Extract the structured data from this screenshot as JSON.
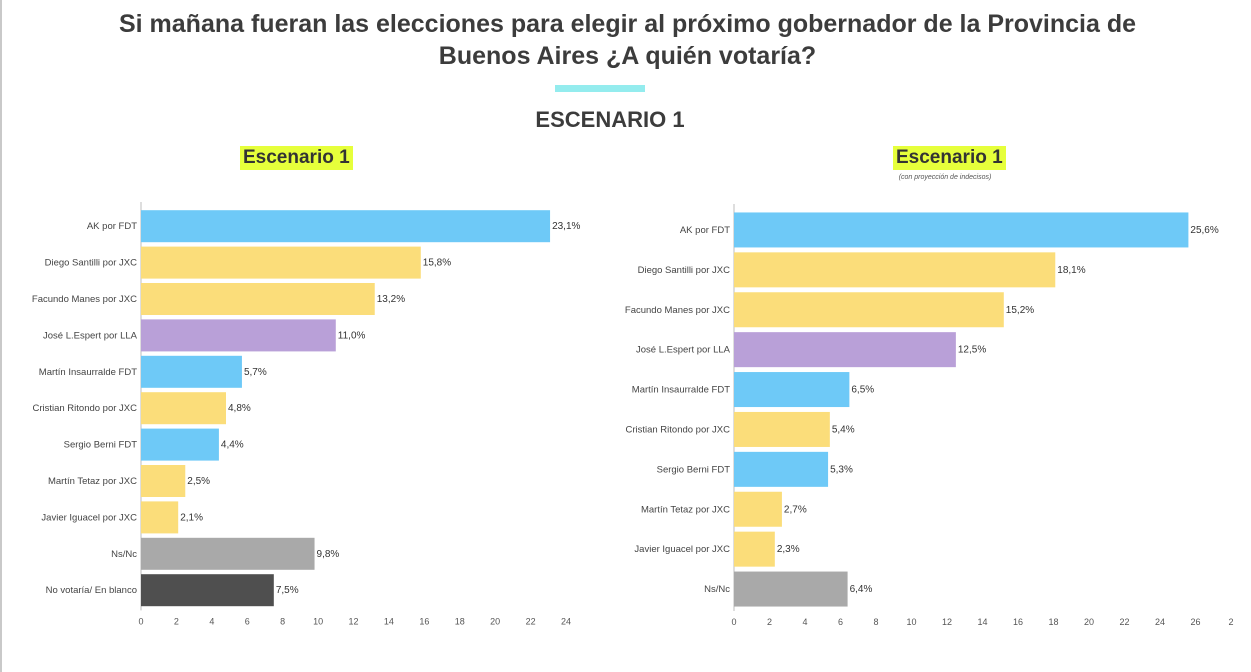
{
  "page": {
    "title": "Si mañana fueran las elecciones para elegir al próximo gobernador de la Provincia de Buenos Aires ¿A quién votaría?",
    "scenario_header": "ESCENARIO 1",
    "colors": {
      "accent": "#94ecee",
      "title_highlight": "#e6ff3b",
      "fdt": "#6ec9f7",
      "jxc": "#fbdd7a",
      "lla": "#b9a0d8",
      "nsnc": "#a9a9a9",
      "blank": "#4f4f4f"
    }
  },
  "chart_data": [
    {
      "type": "bar",
      "orientation": "horizontal",
      "title": "Escenario 1",
      "subtitle": "",
      "categories": [
        "AK por FDT",
        "Diego Santilli por JXC",
        "Facundo Manes por JXC",
        "José L.Espert por LLA",
        "Martín Insaurralde FDT",
        "Cristian Ritondo por JXC",
        "Sergio Berni FDT",
        "Martín Tetaz por JXC",
        "Javier Iguacel por JXC",
        "Ns/Nc",
        "No votaría/ En blanco"
      ],
      "values": [
        23.1,
        15.8,
        13.2,
        11.0,
        5.7,
        4.8,
        4.4,
        2.5,
        2.1,
        9.8,
        7.5
      ],
      "value_labels": [
        "23,1%",
        "15,8%",
        "13,2%",
        "11,0%",
        "5,7%",
        "4,8%",
        "4,4%",
        "2,5%",
        "2,1%",
        "9,8%",
        "7,5%"
      ],
      "colors": [
        "#6ec9f7",
        "#fbdd7a",
        "#fbdd7a",
        "#b9a0d8",
        "#6ec9f7",
        "#fbdd7a",
        "#6ec9f7",
        "#fbdd7a",
        "#fbdd7a",
        "#a9a9a9",
        "#4f4f4f"
      ],
      "xticks": [
        "0",
        "2",
        "4",
        "6",
        "8",
        "10",
        "12",
        "14",
        "16",
        "18",
        "20",
        "22",
        "24"
      ],
      "xlim": [
        0,
        24
      ],
      "grid": false
    },
    {
      "type": "bar",
      "orientation": "horizontal",
      "title": "Escenario 1",
      "subtitle": "(con proyección de indecisos)",
      "categories": [
        "AK por FDT",
        "Diego Santilli por JXC",
        "Facundo Manes por JXC",
        "José L.Espert por LLA",
        "Martín Insaurralde FDT",
        "Cristian Ritondo por JXC",
        "Sergio Berni FDT",
        "Martín Tetaz por JXC",
        "Javier Iguacel por JXC",
        "Ns/Nc"
      ],
      "values": [
        25.6,
        18.1,
        15.2,
        12.5,
        6.5,
        5.4,
        5.3,
        2.7,
        2.3,
        6.4
      ],
      "value_labels": [
        "25,6%",
        "18,1%",
        "15,2%",
        "12,5%",
        "6,5%",
        "5,4%",
        "5,3%",
        "2,7%",
        "2,3%",
        "6,4%"
      ],
      "colors": [
        "#6ec9f7",
        "#fbdd7a",
        "#fbdd7a",
        "#b9a0d8",
        "#6ec9f7",
        "#fbdd7a",
        "#6ec9f7",
        "#fbdd7a",
        "#fbdd7a",
        "#a9a9a9"
      ],
      "xticks": [
        "0",
        "2",
        "4",
        "6",
        "8",
        "10",
        "12",
        "14",
        "16",
        "18",
        "20",
        "22",
        "24",
        "26",
        "2"
      ],
      "xlim": [
        0,
        28
      ],
      "grid": false
    }
  ]
}
